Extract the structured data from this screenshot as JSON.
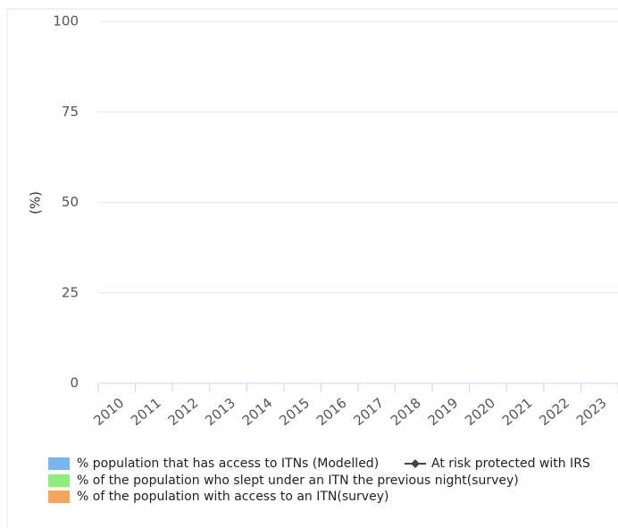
{
  "chart_data": {
    "type": "bar",
    "y_label": "(%)",
    "categories": [
      "2010",
      "2011",
      "2012",
      "2013",
      "2014",
      "2015",
      "2016",
      "2017",
      "2018",
      "2019",
      "2020",
      "2021",
      "2022",
      "2023"
    ],
    "series": [
      {
        "name": "% population that has access to ITNs (Modelled)",
        "color": "#7cb5ec",
        "type": "bar"
      },
      {
        "name": "At risk protected with IRS",
        "color": "#434348",
        "type": "line"
      },
      {
        "name": "% of the population who slept under an ITN the previous night(survey)",
        "color": "#90ed7d",
        "type": "bar"
      },
      {
        "name": "% of the population with access to an ITN(survey)",
        "color": "#f7a35c",
        "type": "bar"
      }
    ],
    "ylim": [
      0,
      100
    ],
    "yticks": [
      0,
      25,
      50,
      75,
      100
    ],
    "grid": true
  }
}
